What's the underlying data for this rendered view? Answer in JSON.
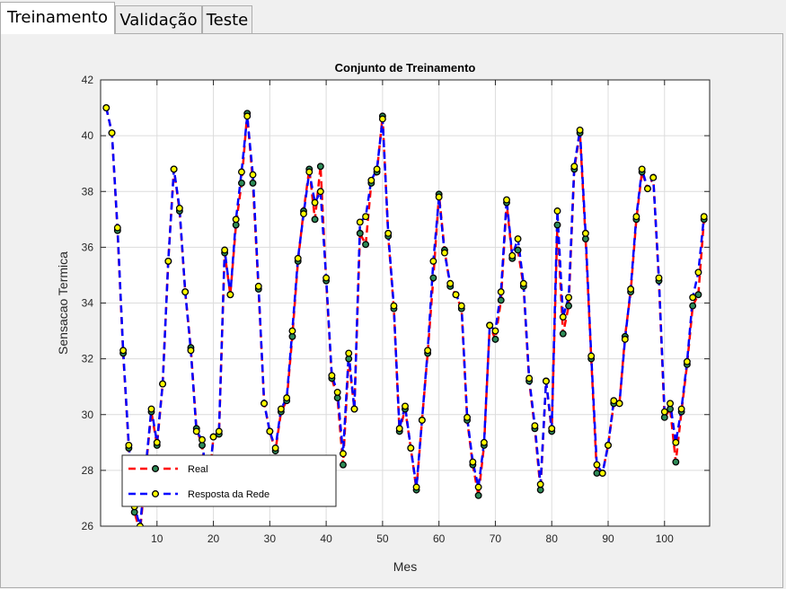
{
  "tabs": [
    {
      "label": "Treinamento",
      "active": true
    },
    {
      "label": "Validação",
      "active": false
    },
    {
      "label": "Teste",
      "active": false
    }
  ],
  "colors": {
    "real": "#ff0000",
    "rede": "#0000ff",
    "marker_edge": "#000000",
    "marker_face_real": "#2e8b57",
    "marker_face_rede": "#ffff00"
  },
  "chart_data": {
    "type": "line",
    "title": "Conjunto de Treinamento",
    "xlabel": "Mes",
    "ylabel": "Sensacao Termica",
    "xlim": [
      0,
      108
    ],
    "ylim": [
      26,
      42
    ],
    "xticks": [
      10,
      20,
      30,
      40,
      50,
      60,
      70,
      80,
      90,
      100
    ],
    "yticks": [
      26,
      28,
      30,
      32,
      34,
      36,
      38,
      40,
      42
    ],
    "grid": true,
    "legend_position": "bottom-left",
    "series": [
      {
        "name": "Real",
        "line": "dashed",
        "color": "#ff0000",
        "values": [
          41.0,
          40.1,
          36.6,
          32.2,
          28.8,
          26.5,
          25.8,
          28.0,
          30.1,
          28.9,
          31.1,
          35.5,
          38.8,
          37.3,
          34.4,
          32.4,
          29.5,
          28.9,
          27.0,
          29.2,
          29.3,
          35.8,
          34.3,
          36.8,
          38.3,
          40.8,
          38.3,
          34.5,
          30.4,
          29.4,
          28.7,
          30.1,
          30.5,
          32.8,
          35.5,
          37.3,
          38.8,
          37.0,
          38.9,
          34.8,
          31.3,
          30.6,
          28.2,
          32.0,
          30.2,
          36.5,
          36.1,
          38.3,
          38.7,
          40.7,
          36.4,
          33.8,
          29.4,
          30.2,
          28.8,
          27.3,
          29.8,
          32.2,
          34.9,
          37.9,
          35.9,
          34.6,
          34.3,
          33.8,
          29.8,
          28.2,
          27.1,
          28.9,
          33.2,
          32.7,
          34.1,
          37.6,
          35.6,
          35.9,
          34.6,
          31.2,
          29.5,
          27.3,
          31.2,
          29.4,
          36.8,
          32.9,
          33.9,
          38.8,
          40.1,
          36.3,
          32.0,
          27.9,
          27.9,
          28.9,
          30.4,
          30.4,
          32.8,
          34.4,
          37.0,
          38.7,
          38.1,
          38.5,
          34.8,
          29.9,
          30.2,
          28.3,
          30.1,
          31.8,
          33.9,
          34.3,
          37.0
        ]
      },
      {
        "name": "Resposta da Rede",
        "line": "dashed",
        "color": "#0000ff",
        "values": [
          41.0,
          40.1,
          36.7,
          32.3,
          28.9,
          26.7,
          26.0,
          28.1,
          30.2,
          29.0,
          31.1,
          35.5,
          38.8,
          37.4,
          34.4,
          32.3,
          29.4,
          29.1,
          27.2,
          29.2,
          29.4,
          35.9,
          34.3,
          37.0,
          38.7,
          40.7,
          38.6,
          34.6,
          30.4,
          29.4,
          28.8,
          30.2,
          30.6,
          33.0,
          35.6,
          37.2,
          38.7,
          37.6,
          38.0,
          34.9,
          31.4,
          30.8,
          28.6,
          32.2,
          30.2,
          36.9,
          37.1,
          38.4,
          38.8,
          40.6,
          36.5,
          33.9,
          29.5,
          30.3,
          28.8,
          27.4,
          29.8,
          32.3,
          35.5,
          37.8,
          35.8,
          34.7,
          34.3,
          33.9,
          29.9,
          28.3,
          27.4,
          29.0,
          33.2,
          33.0,
          34.4,
          37.7,
          35.7,
          36.3,
          34.7,
          31.3,
          29.6,
          27.5,
          31.2,
          29.5,
          37.3,
          33.5,
          34.2,
          38.9,
          40.2,
          36.5,
          32.1,
          28.2,
          27.9,
          28.9,
          30.5,
          30.4,
          32.7,
          34.5,
          37.1,
          38.8,
          38.1,
          38.5,
          34.9,
          30.1,
          30.4,
          29.0,
          30.2,
          31.9,
          34.2,
          35.1,
          37.1
        ]
      }
    ]
  }
}
